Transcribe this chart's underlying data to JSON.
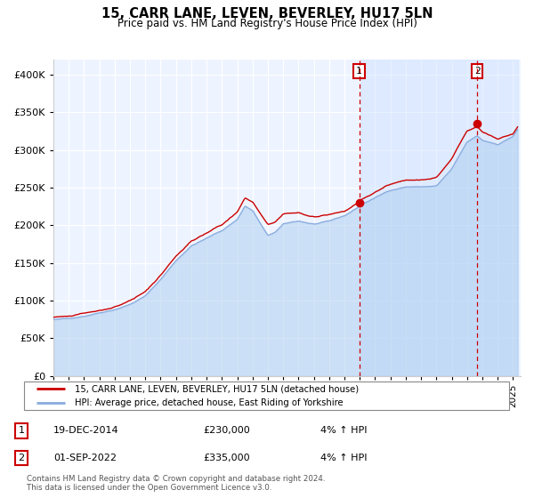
{
  "title": "15, CARR LANE, LEVEN, BEVERLEY, HU17 5LN",
  "subtitle": "Price paid vs. HM Land Registry's House Price Index (HPI)",
  "xlim_start": 1995.0,
  "xlim_end": 2025.5,
  "ylim": [
    0,
    420000
  ],
  "yticks": [
    0,
    50000,
    100000,
    150000,
    200000,
    250000,
    300000,
    350000,
    400000
  ],
  "ytick_labels": [
    "£0",
    "£50K",
    "£100K",
    "£150K",
    "£200K",
    "£250K",
    "£300K",
    "£350K",
    "£400K"
  ],
  "hpi_color": "#aaccee",
  "hpi_line_color": "#88aadd",
  "price_color": "#cc0000",
  "plot_bg": "#eef4ff",
  "grid_color": "#ffffff",
  "shade_between_color": "#cce0ff",
  "sale1_date": 2014.96,
  "sale1_price": 230000,
  "sale2_date": 2022.67,
  "sale2_price": 335000,
  "legend_label1": "15, CARR LANE, LEVEN, BEVERLEY, HU17 5LN (detached house)",
  "legend_label2": "HPI: Average price, detached house, East Riding of Yorkshire",
  "ann1_date": "19-DEC-2014",
  "ann1_price": "£230,000",
  "ann1_hpi": "4% ↑ HPI",
  "ann2_date": "01-SEP-2022",
  "ann2_price": "£335,000",
  "ann2_hpi": "4% ↑ HPI",
  "footer": "Contains HM Land Registry data © Crown copyright and database right 2024.\nThis data is licensed under the Open Government Licence v3.0."
}
